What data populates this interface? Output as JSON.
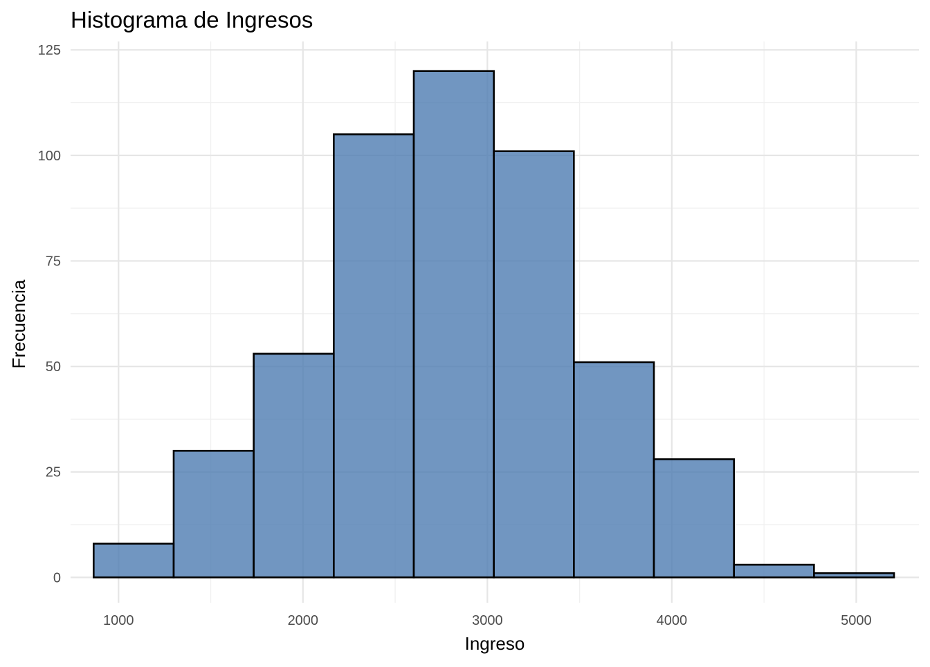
{
  "chart_data": {
    "type": "histogram",
    "title": "Histograma de Ingresos",
    "xlabel": "Ingreso",
    "ylabel": "Frecuencia",
    "bar_color": "#4E7CB1",
    "bar_opacity": 0.8,
    "bar_border_color": "#000000",
    "grid": true,
    "xlim": [
      740,
      5340
    ],
    "ylim": [
      -6,
      127
    ],
    "x_ticks": [
      1000,
      2000,
      3000,
      4000,
      5000
    ],
    "x_tick_labels": [
      "1000",
      "2000",
      "3000",
      "4000",
      "5000"
    ],
    "x_minor_ticks": [
      1500,
      2500,
      3500,
      4500
    ],
    "y_ticks": [
      0,
      25,
      50,
      75,
      100,
      125
    ],
    "y_tick_labels": [
      "0",
      "25",
      "50",
      "75",
      "100",
      "125"
    ],
    "y_minor_ticks": [
      12.5,
      37.5,
      62.5,
      87.5,
      112.5
    ],
    "bins": [
      {
        "x0": 865,
        "x1": 1299,
        "count": 8
      },
      {
        "x0": 1299,
        "x1": 1733,
        "count": 30
      },
      {
        "x0": 1733,
        "x1": 2167,
        "count": 53
      },
      {
        "x0": 2167,
        "x1": 2601,
        "count": 105
      },
      {
        "x0": 2601,
        "x1": 3035,
        "count": 120
      },
      {
        "x0": 3035,
        "x1": 3469,
        "count": 101
      },
      {
        "x0": 3469,
        "x1": 3903,
        "count": 51
      },
      {
        "x0": 3903,
        "x1": 4337,
        "count": 28
      },
      {
        "x0": 4337,
        "x1": 4771,
        "count": 3
      },
      {
        "x0": 4771,
        "x1": 5205,
        "count": 1
      }
    ]
  }
}
